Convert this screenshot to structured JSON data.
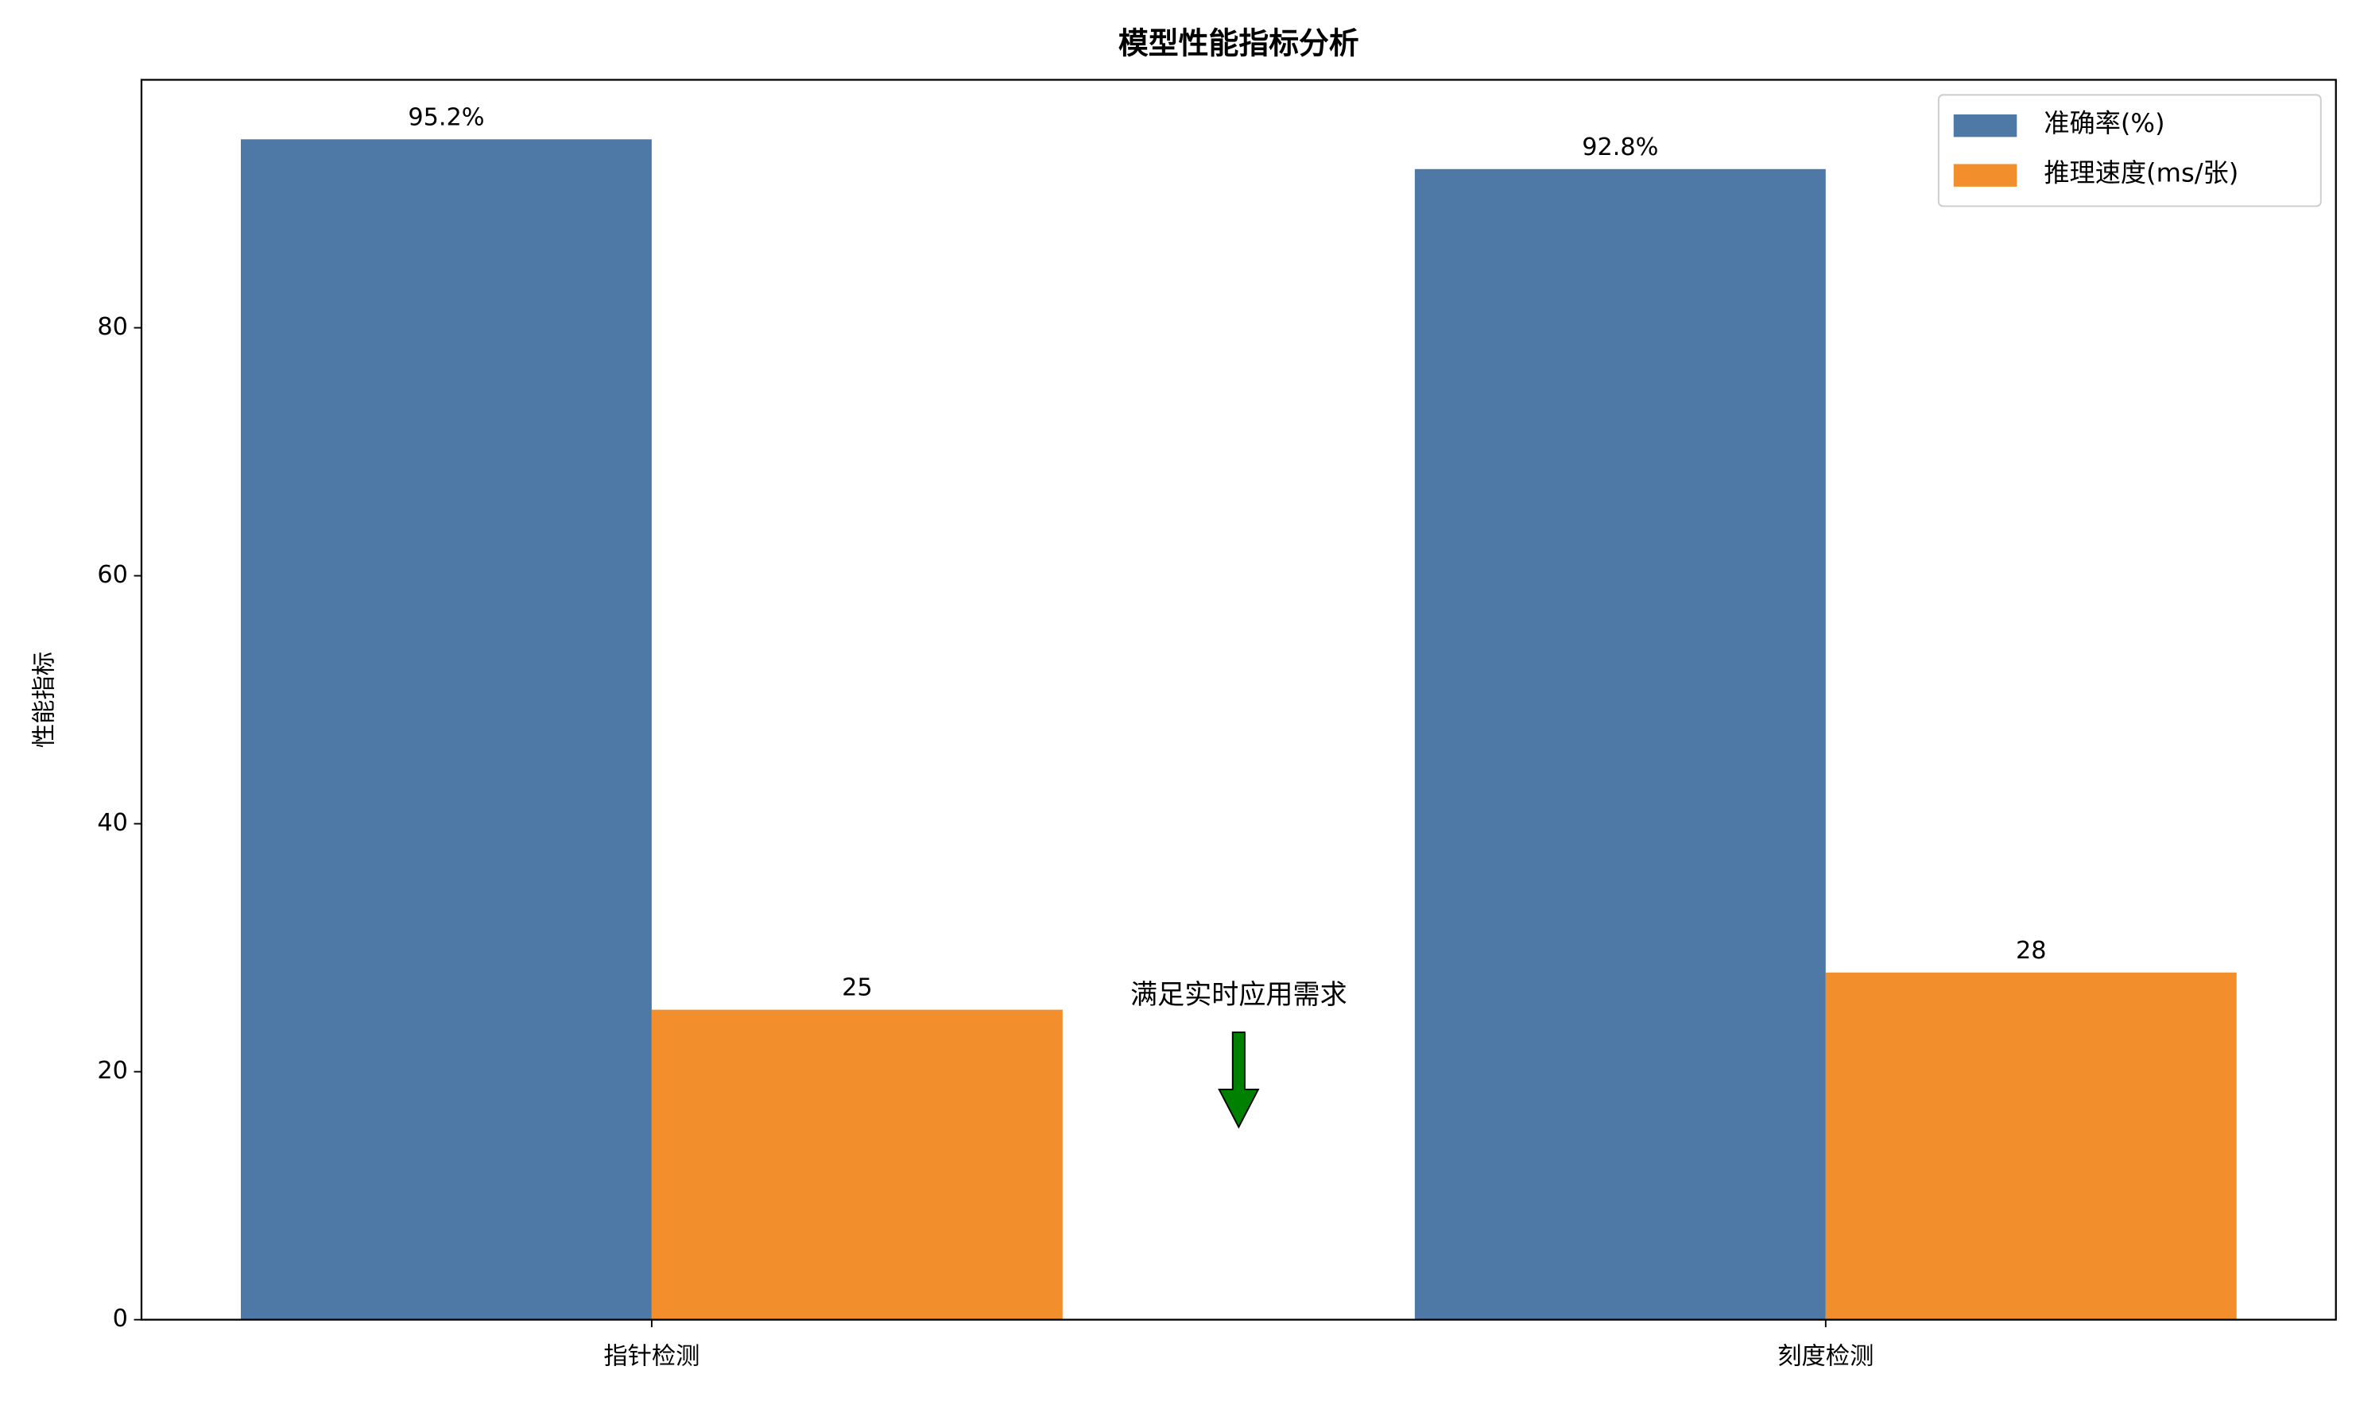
{
  "chart_data": {
    "type": "bar",
    "title": "模型性能指标分析",
    "ylabel": "性能指标",
    "categories": [
      "指针检测",
      "刻度检测"
    ],
    "series": [
      {
        "name": "准确率(%)",
        "color": "#4e79a7",
        "values": [
          95.2,
          92.8
        ],
        "value_labels": [
          "95.2%",
          "92.8%"
        ]
      },
      {
        "name": "推理速度(ms/张)",
        "color": "#f28e2b",
        "values": [
          25,
          28
        ]
      }
    ],
    "ylim": [
      0,
      100
    ],
    "yticks": [
      0,
      20,
      40,
      60,
      80
    ],
    "legend": "upper right",
    "annotation": {
      "text": "满足实时应用需求",
      "color": "green"
    }
  }
}
